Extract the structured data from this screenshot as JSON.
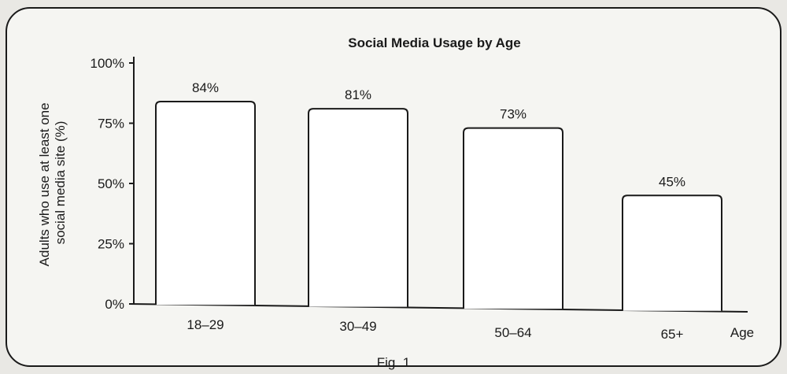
{
  "chart_data": {
    "type": "bar",
    "title": "Social Media Usage by Age",
    "ylabel_lines": [
      "Adults who use at least one",
      "social media site (%)"
    ],
    "xlabel": "Age",
    "categories": [
      "18–29",
      "30–49",
      "50–64",
      "65+"
    ],
    "values": [
      84,
      81,
      73,
      45
    ],
    "data_labels": [
      "84%",
      "81%",
      "73%",
      "45%"
    ],
    "ylim": [
      0,
      100
    ],
    "yticks": [
      0,
      25,
      50,
      75,
      100
    ],
    "ytick_labels": [
      "0%",
      "25%",
      "50%",
      "75%",
      "100%"
    ],
    "grid": false,
    "legend": "none"
  },
  "caption": "Fig. 1",
  "colors": {
    "background": "#e9e8e4",
    "panel": "#f5f5f2",
    "ink": "#1a1a1a",
    "bar_fill": "#ffffff"
  }
}
